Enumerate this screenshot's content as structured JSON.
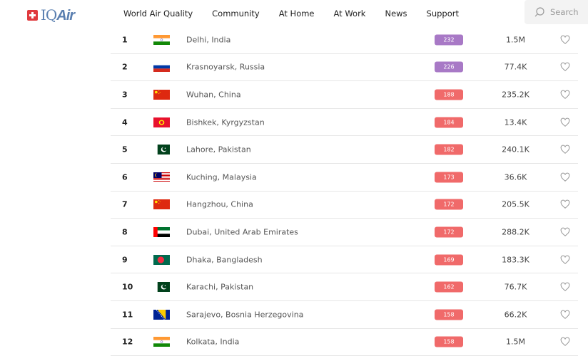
{
  "header": {
    "logo": "IQAir",
    "nav": [
      "World Air Quality",
      "Community",
      "At Home",
      "At Work",
      "News",
      "Support"
    ],
    "search_placeholder": "Search"
  },
  "colors": {
    "unhealthy": "#f06a6a",
    "very_unhealthy": "#a879c6"
  },
  "rows": [
    {
      "rank": "1",
      "flag": "india",
      "city": "Delhi, India",
      "aqi": "232",
      "level": "very_unhealthy",
      "population": "1.5M"
    },
    {
      "rank": "2",
      "flag": "russia",
      "city": "Krasnoyarsk, Russia",
      "aqi": "226",
      "level": "very_unhealthy",
      "population": "77.4K"
    },
    {
      "rank": "3",
      "flag": "china",
      "city": "Wuhan, China",
      "aqi": "188",
      "level": "unhealthy",
      "population": "235.2K"
    },
    {
      "rank": "4",
      "flag": "kyrgyzstan",
      "city": "Bishkek, Kyrgyzstan",
      "aqi": "184",
      "level": "unhealthy",
      "population": "13.4K"
    },
    {
      "rank": "5",
      "flag": "pakistan",
      "city": "Lahore, Pakistan",
      "aqi": "182",
      "level": "unhealthy",
      "population": "240.1K"
    },
    {
      "rank": "6",
      "flag": "malaysia",
      "city": "Kuching, Malaysia",
      "aqi": "173",
      "level": "unhealthy",
      "population": "36.6K"
    },
    {
      "rank": "7",
      "flag": "china",
      "city": "Hangzhou, China",
      "aqi": "172",
      "level": "unhealthy",
      "population": "205.5K"
    },
    {
      "rank": "8",
      "flag": "uae",
      "city": "Dubai, United Arab Emirates",
      "aqi": "172",
      "level": "unhealthy",
      "population": "288.2K"
    },
    {
      "rank": "9",
      "flag": "bangladesh",
      "city": "Dhaka, Bangladesh",
      "aqi": "169",
      "level": "unhealthy",
      "population": "183.3K"
    },
    {
      "rank": "10",
      "flag": "pakistan",
      "city": "Karachi, Pakistan",
      "aqi": "162",
      "level": "unhealthy",
      "population": "76.7K"
    },
    {
      "rank": "11",
      "flag": "bosnia",
      "city": "Sarajevo, Bosnia Herzegovina",
      "aqi": "158",
      "level": "unhealthy",
      "population": "66.2K"
    },
    {
      "rank": "12",
      "flag": "india",
      "city": "Kolkata, India",
      "aqi": "158",
      "level": "unhealthy",
      "population": "1.5M"
    }
  ]
}
